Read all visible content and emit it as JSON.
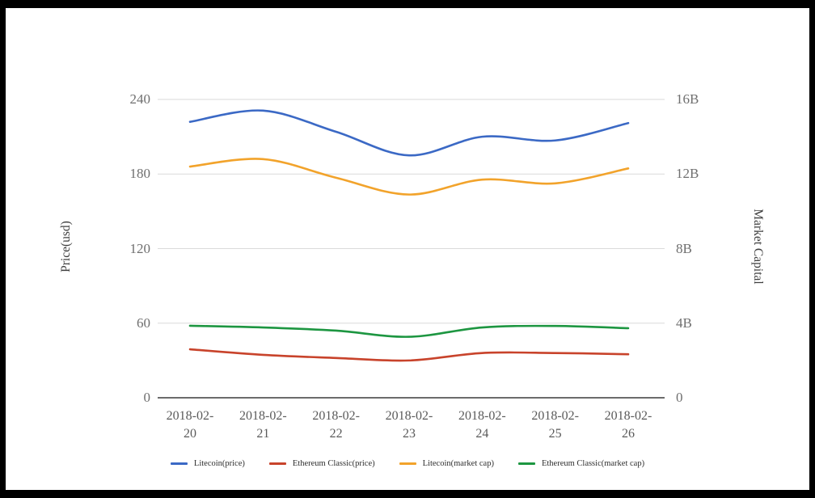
{
  "window": {
    "background": "#ffffff",
    "frame_color": "#000000"
  },
  "chart_data": {
    "type": "line",
    "title": "",
    "x": [
      "2018-02-20",
      "2018-02-21",
      "2018-02-22",
      "2018-02-23",
      "2018-02-24",
      "2018-02-25",
      "2018-02-26"
    ],
    "series": [
      {
        "name": "Litecoin(price)",
        "axis": "left",
        "color": "#3B69C5",
        "values": [
          222,
          231,
          214,
          195,
          210,
          207,
          221
        ]
      },
      {
        "name": "Ethereum Classic(price)",
        "axis": "left",
        "color": "#C8432B",
        "values": [
          39,
          34.5,
          32,
          30,
          36,
          36,
          35
        ]
      },
      {
        "name": "Litecoin(market cap)",
        "axis": "right",
        "color": "#F2A32B",
        "values": [
          12.4,
          12.8,
          11.8,
          10.9,
          11.7,
          11.5,
          12.3
        ]
      },
      {
        "name": "Ethereum Classic(market cap)",
        "axis": "right",
        "color": "#1D9641",
        "values": [
          3.86,
          3.77,
          3.6,
          3.27,
          3.77,
          3.85,
          3.73
        ]
      }
    ],
    "ylabel_left": "Price(usd)",
    "ylabel_right": "Market Capital",
    "ylim_left": [
      0,
      240
    ],
    "ylim_right_billions": [
      0,
      16
    ],
    "left_ticks": [
      "0",
      "60",
      "120",
      "180",
      "240"
    ],
    "right_ticks": [
      "0",
      "4B",
      "8B",
      "12B",
      "16B"
    ],
    "right_unit": "B",
    "grid": "horizontal",
    "legend_position": "bottom",
    "grid_color": "#dadada",
    "baseline_color": "#3c3c3c"
  }
}
